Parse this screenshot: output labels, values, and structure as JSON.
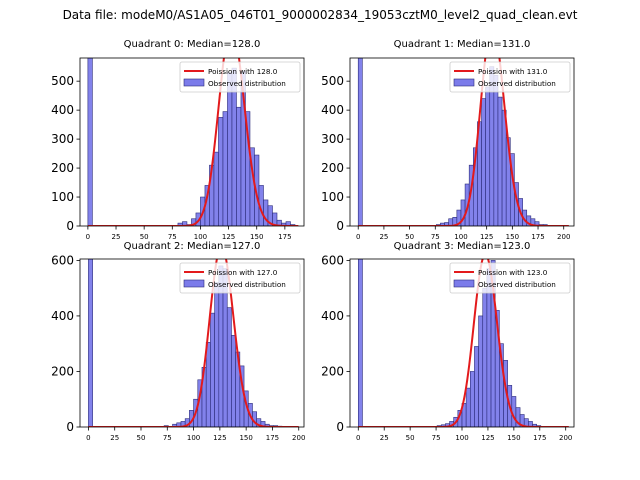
{
  "figure": {
    "suptitle": "Data file: modeM0/AS1A05_046T01_9000002834_19053cztM0_level2_quad_clean.evt"
  },
  "colors": {
    "bar_fill": "#7b7bea",
    "bar_edge": "#2c2c7a",
    "poisson_line": "#e31a1c",
    "axes": "#000000"
  },
  "chart_data": [
    {
      "type": "bar",
      "title": "Quadrant 0: Median=128.0",
      "median": 128,
      "legend": {
        "poisson_label": "Poission with 128.0",
        "observed_label": "Observed distribution",
        "placement": "upper right"
      },
      "xlim": [
        -7,
        192
      ],
      "ylim": [
        0,
        580
      ],
      "xticks": [
        0,
        25,
        50,
        75,
        100,
        125,
        150,
        175
      ],
      "yticks": [
        0,
        100,
        200,
        300,
        400,
        500
      ],
      "bin_width": 4,
      "bins": [
        0,
        80,
        84,
        88,
        92,
        96,
        100,
        104,
        108,
        112,
        116,
        120,
        124,
        128,
        132,
        136,
        140,
        144,
        148,
        152,
        156,
        160,
        164,
        168,
        172,
        176,
        180
      ],
      "counts": [
        580,
        10,
        15,
        5,
        25,
        45,
        100,
        140,
        210,
        255,
        375,
        395,
        530,
        545,
        410,
        535,
        395,
        270,
        245,
        140,
        90,
        70,
        45,
        20,
        10,
        15,
        5
      ]
    },
    {
      "type": "bar",
      "title": "Quadrant 1: Median=131.0",
      "median": 131,
      "legend": {
        "poisson_label": "Poission with 131.0",
        "observed_label": "Observed distribution",
        "placement": "upper right"
      },
      "xlim": [
        -8,
        210
      ],
      "ylim": [
        0,
        580
      ],
      "xticks": [
        0,
        25,
        50,
        75,
        100,
        125,
        150,
        175,
        200
      ],
      "yticks": [
        0,
        100,
        200,
        300,
        400,
        500
      ],
      "bin_width": 4,
      "bins": [
        0,
        76,
        80,
        84,
        88,
        92,
        96,
        100,
        104,
        108,
        112,
        116,
        120,
        124,
        128,
        132,
        136,
        140,
        144,
        148,
        152,
        156,
        160,
        164,
        168,
        172,
        176,
        180
      ],
      "counts": [
        580,
        5,
        10,
        12,
        25,
        30,
        55,
        90,
        145,
        210,
        270,
        360,
        440,
        480,
        550,
        520,
        445,
        400,
        305,
        250,
        150,
        95,
        55,
        35,
        25,
        15,
        5,
        5
      ]
    },
    {
      "type": "bar",
      "title": "Quadrant 2: Median=127.0",
      "median": 127,
      "legend": {
        "poisson_label": "Poission with 127.0",
        "observed_label": "Observed distribution",
        "placement": "upper right"
      },
      "xlim": [
        -8,
        205
      ],
      "ylim": [
        0,
        605
      ],
      "xticks": [
        0,
        25,
        50,
        75,
        100,
        125,
        150,
        175,
        200
      ],
      "yticks": [
        0,
        200,
        400,
        600
      ],
      "bin_width": 4,
      "bins": [
        0,
        72,
        80,
        84,
        88,
        92,
        96,
        100,
        104,
        108,
        112,
        116,
        120,
        124,
        128,
        132,
        136,
        140,
        144,
        148,
        152,
        156,
        160,
        164,
        168,
        172,
        176,
        180
      ],
      "counts": [
        605,
        5,
        10,
        15,
        20,
        30,
        60,
        100,
        170,
        215,
        305,
        410,
        520,
        580,
        570,
        430,
        330,
        270,
        220,
        130,
        85,
        55,
        30,
        20,
        10,
        5,
        5,
        3
      ]
    },
    {
      "type": "bar",
      "title": "Quadrant 3: Median=123.0",
      "median": 123,
      "legend": {
        "poisson_label": "Poission with 123.0",
        "observed_label": "Observed distribution",
        "placement": "upper right"
      },
      "xlim": [
        -8,
        208
      ],
      "ylim": [
        0,
        605
      ],
      "xticks": [
        0,
        25,
        50,
        75,
        100,
        125,
        150,
        175,
        200
      ],
      "yticks": [
        0,
        200,
        400,
        600
      ],
      "bin_width": 4,
      "bins": [
        0,
        76,
        80,
        84,
        88,
        92,
        96,
        100,
        104,
        108,
        112,
        116,
        120,
        124,
        128,
        132,
        136,
        140,
        144,
        148,
        152,
        156,
        160,
        164,
        168,
        172
      ],
      "counts": [
        605,
        5,
        8,
        12,
        20,
        35,
        60,
        85,
        140,
        200,
        290,
        400,
        500,
        570,
        600,
        420,
        300,
        240,
        150,
        110,
        70,
        45,
        30,
        20,
        10,
        5
      ]
    }
  ]
}
